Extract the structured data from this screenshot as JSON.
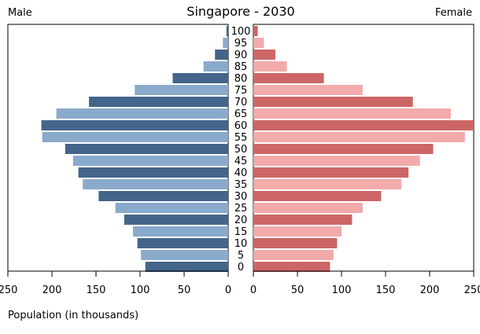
{
  "chart_data": {
    "type": "bar",
    "title": "Singapore - 2030",
    "left_label": "Male",
    "right_label": "Female",
    "xlabel": "Population (in thousands)",
    "xlim": [
      0,
      250
    ],
    "x_ticks_left": [
      "250",
      "200",
      "150",
      "100",
      "50",
      "0"
    ],
    "x_ticks_right": [
      "0",
      "50",
      "100",
      "150",
      "200",
      "250"
    ],
    "categories": [
      "100",
      "95",
      "90",
      "85",
      "80",
      "75",
      "70",
      "65",
      "60",
      "55",
      "50",
      "45",
      "40",
      "35",
      "30",
      "25",
      "20",
      "15",
      "10",
      "5",
      "0"
    ],
    "series": [
      {
        "name": "Male",
        "values": [
          2,
          6,
          15,
          28,
          63,
          106,
          158,
          195,
          212,
          211,
          185,
          176,
          170,
          165,
          147,
          128,
          118,
          108,
          103,
          99,
          94
        ]
      },
      {
        "name": "Female",
        "values": [
          5,
          12,
          25,
          38,
          80,
          124,
          181,
          224,
          250,
          240,
          204,
          189,
          176,
          168,
          145,
          124,
          112,
          100,
          95,
          91,
          87
        ]
      }
    ],
    "colors": {
      "male_dark": "#44658a",
      "male_light": "#8aaacc",
      "female_dark": "#cc6666",
      "female_light": "#f2aaaa",
      "frame": "#000000"
    },
    "grid": false
  }
}
